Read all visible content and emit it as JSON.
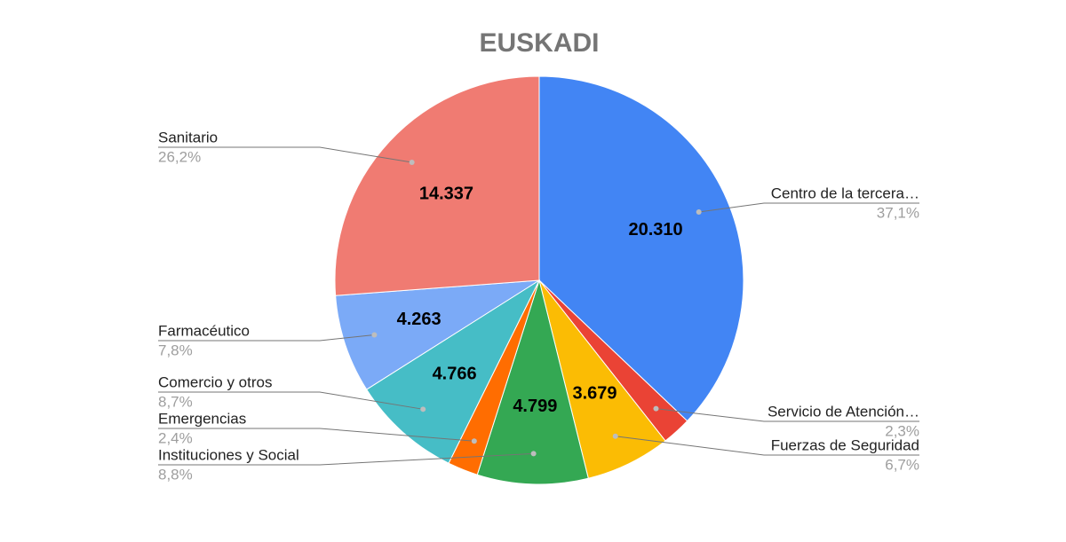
{
  "chart_data": {
    "type": "pie",
    "title": "EUSKADI",
    "categories": [
      "Centro de la tercera…",
      "Servicio de Atención…",
      "Fuerzas de Seguridad",
      "Instituciones y Social",
      "Emergencias",
      "Comercio y otros",
      "Farmacéutico",
      "Sanitario"
    ],
    "values": [
      20310,
      1262,
      3679,
      4799,
      1317,
      4766,
      4263,
      14337
    ],
    "value_labels": [
      "20.310",
      null,
      "3.679",
      "4.799",
      null,
      "4.766",
      "4.263",
      "14.337"
    ],
    "percent_labels": [
      "37,1%",
      "2,3%",
      "6,7%",
      "8,8%",
      "2,4%",
      "8,7%",
      "7,8%",
      "26,2%"
    ],
    "colors": [
      "#4285f4",
      "#ea4335",
      "#fbbc04",
      "#34a853",
      "#ff6d01",
      "#46bdc6",
      "#7baaf7",
      "#f07b72"
    ]
  }
}
